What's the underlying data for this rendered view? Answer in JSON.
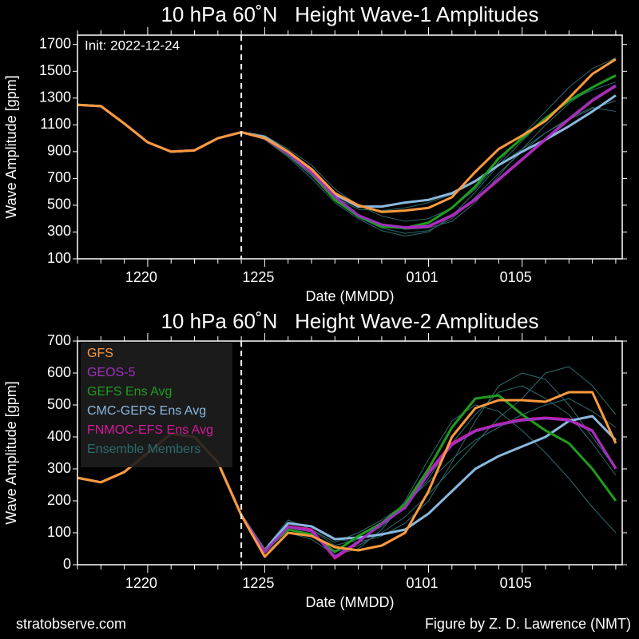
{
  "chart_data": [
    {
      "type": "line",
      "title": "10 hPa 60˚N   Height Wave-1 Amplitudes",
      "xlabel": "Date (MMDD)",
      "ylabel": "Wave Amplitude [gpm]",
      "annotation": "Init: 2022-12-24",
      "categories": [
        null,
        null,
        null,
        "1220",
        null,
        null,
        null,
        null,
        "1225",
        null,
        null,
        null,
        null,
        null,
        null,
        "0101",
        null,
        null,
        null,
        "0105",
        null,
        null,
        null,
        null
      ],
      "ylim": [
        100,
        1770
      ],
      "yticks": [
        100,
        300,
        500,
        700,
        900,
        1100,
        1300,
        1500,
        1700
      ],
      "series": [
        {
          "color": "#ff9a3c",
          "values": [
            1250,
            1240,
            1110,
            970,
            900,
            910,
            1000,
            1045,
            1000,
            900,
            770,
            590,
            500,
            450,
            460,
            480,
            560,
            750,
            920,
            1020,
            1130,
            1300,
            1480,
            1590
          ]
        },
        {
          "color": "#a030c0",
          "values": [
            1250,
            1240,
            1110,
            970,
            900,
            910,
            1000,
            1045,
            1000,
            885,
            745,
            565,
            425,
            355,
            335,
            345,
            425,
            545,
            695,
            845,
            995,
            1145,
            1285,
            1395
          ]
        },
        {
          "color": "#1f9c1f",
          "values": [
            1250,
            1240,
            1110,
            970,
            900,
            910,
            1000,
            1045,
            1000,
            880,
            740,
            540,
            420,
            340,
            330,
            370,
            480,
            640,
            850,
            1000,
            1150,
            1280,
            1380,
            1470
          ]
        },
        {
          "color": "#8ab8e0",
          "values": [
            1250,
            1240,
            1110,
            970,
            900,
            910,
            1000,
            1045,
            1010,
            900,
            770,
            580,
            490,
            490,
            520,
            540,
            590,
            680,
            800,
            900,
            990,
            1090,
            1200,
            1320
          ]
        },
        {
          "color": "#d6189c",
          "values": [
            1250,
            1240,
            1110,
            970,
            900,
            910,
            1000,
            1045,
            1000,
            880,
            740,
            560,
            420,
            350,
            330,
            340,
            420,
            540,
            690,
            840,
            990,
            1140,
            1280,
            1390
          ]
        },
        {
          "color": "#2b6b6e",
          "values": [
            [
              null,
              null,
              null,
              null,
              null,
              null,
              null,
              1050,
              1010,
              900,
              760,
              560,
              430,
              360,
              320,
              330,
              380,
              520,
              720,
              920,
              1100,
              1260,
              1380,
              1460
            ],
            [
              null,
              null,
              null,
              null,
              null,
              null,
              null,
              1050,
              990,
              860,
              700,
              520,
              400,
              310,
              270,
              300,
              420,
              600,
              800,
              980,
              1150,
              1280,
              1360,
              1420
            ],
            [
              null,
              null,
              null,
              null,
              null,
              null,
              null,
              1050,
              1000,
              880,
              740,
              560,
              470,
              460,
              480,
              520,
              580,
              680,
              800,
              920,
              1040,
              1140,
              1220,
              1280
            ],
            [
              null,
              null,
              null,
              null,
              null,
              null,
              null,
              1050,
              1020,
              920,
              800,
              620,
              500,
              420,
              380,
              400,
              480,
              620,
              820,
              1020,
              1200,
              1380,
              1520,
              1600
            ],
            [
              null,
              null,
              null,
              null,
              null,
              null,
              null,
              1050,
              1000,
              870,
              720,
              540,
              410,
              330,
              290,
              310,
              400,
              560,
              740,
              900,
              1040,
              1150,
              1230,
              1200
            ]
          ]
        }
      ]
    },
    {
      "type": "line",
      "title": "10 hPa 60˚N   Height Wave-2 Amplitudes",
      "xlabel": "Date (MMDD)",
      "ylabel": "Wave Amplitude [gpm]",
      "legend": "upper left",
      "categories": [
        null,
        null,
        null,
        "1220",
        null,
        null,
        null,
        null,
        "1225",
        null,
        null,
        null,
        null,
        null,
        null,
        "0101",
        null,
        null,
        null,
        "0105",
        null,
        null,
        null,
        null
      ],
      "ylim": [
        0,
        700
      ],
      "yticks": [
        0,
        100,
        200,
        300,
        400,
        500,
        600,
        700
      ],
      "series": [
        {
          "name": "GFS",
          "color": "#ff9a3c",
          "values": [
            272,
            258,
            290,
            350,
            410,
            400,
            320,
            155,
            25,
            100,
            90,
            55,
            45,
            60,
            100,
            230,
            400,
            490,
            515,
            515,
            510,
            540,
            540,
            380
          ]
        },
        {
          "name": "GEOS-5",
          "color": "#a030c0",
          "values": [
            272,
            258,
            290,
            350,
            410,
            400,
            320,
            155,
            42,
            118,
            105,
            25,
            72,
            128,
            178,
            285,
            375,
            418,
            438,
            452,
            458,
            452,
            418,
            302
          ]
        },
        {
          "name": "GEFS Ens Avg",
          "color": "#1f9c1f",
          "values": [
            272,
            258,
            290,
            350,
            410,
            400,
            320,
            155,
            45,
            110,
            95,
            40,
            90,
            130,
            190,
            300,
            430,
            520,
            530,
            470,
            420,
            380,
            300,
            200
          ]
        },
        {
          "name": "CMC-GEPS Ens Avg",
          "color": "#8ab8e0",
          "values": [
            272,
            258,
            290,
            350,
            410,
            400,
            320,
            155,
            45,
            130,
            120,
            80,
            85,
            95,
            110,
            160,
            230,
            300,
            340,
            370,
            400,
            450,
            465,
            390
          ]
        },
        {
          "name": "FNMOC-EFS Ens Avg",
          "color": "#d6189c",
          "values": [
            272,
            258,
            290,
            350,
            410,
            400,
            320,
            155,
            40,
            120,
            110,
            20,
            70,
            130,
            180,
            290,
            380,
            420,
            440,
            455,
            460,
            455,
            420,
            300
          ]
        },
        {
          "name": "Ensemble Members",
          "color": "#2b6b6e",
          "values": [
            [
              null,
              null,
              null,
              null,
              null,
              null,
              null,
              160,
              50,
              120,
              110,
              60,
              80,
              120,
              180,
              270,
              380,
              470,
              540,
              560,
              520,
              470,
              380,
              280
            ],
            [
              null,
              null,
              null,
              null,
              null,
              null,
              null,
              160,
              40,
              110,
              90,
              40,
              60,
              100,
              150,
              220,
              300,
              380,
              460,
              520,
              600,
              620,
              560,
              470
            ],
            [
              null,
              null,
              null,
              null,
              null,
              null,
              null,
              160,
              45,
              130,
              120,
              80,
              70,
              90,
              130,
              200,
              320,
              450,
              560,
              600,
              580,
              500,
              400,
              300
            ],
            [
              null,
              null,
              null,
              null,
              null,
              null,
              null,
              160,
              35,
              100,
              80,
              30,
              50,
              110,
              200,
              330,
              450,
              500,
              480,
              420,
              350,
              270,
              180,
              100
            ],
            [
              null,
              null,
              null,
              null,
              null,
              null,
              null,
              160,
              50,
              140,
              110,
              70,
              100,
              140,
              190,
              260,
              330,
              390,
              430,
              470,
              500,
              520,
              480,
              430
            ]
          ]
        }
      ]
    }
  ],
  "footer": {
    "left": "stratobserve.com",
    "right": "Figure by Z. D. Lawrence (NMT)"
  }
}
